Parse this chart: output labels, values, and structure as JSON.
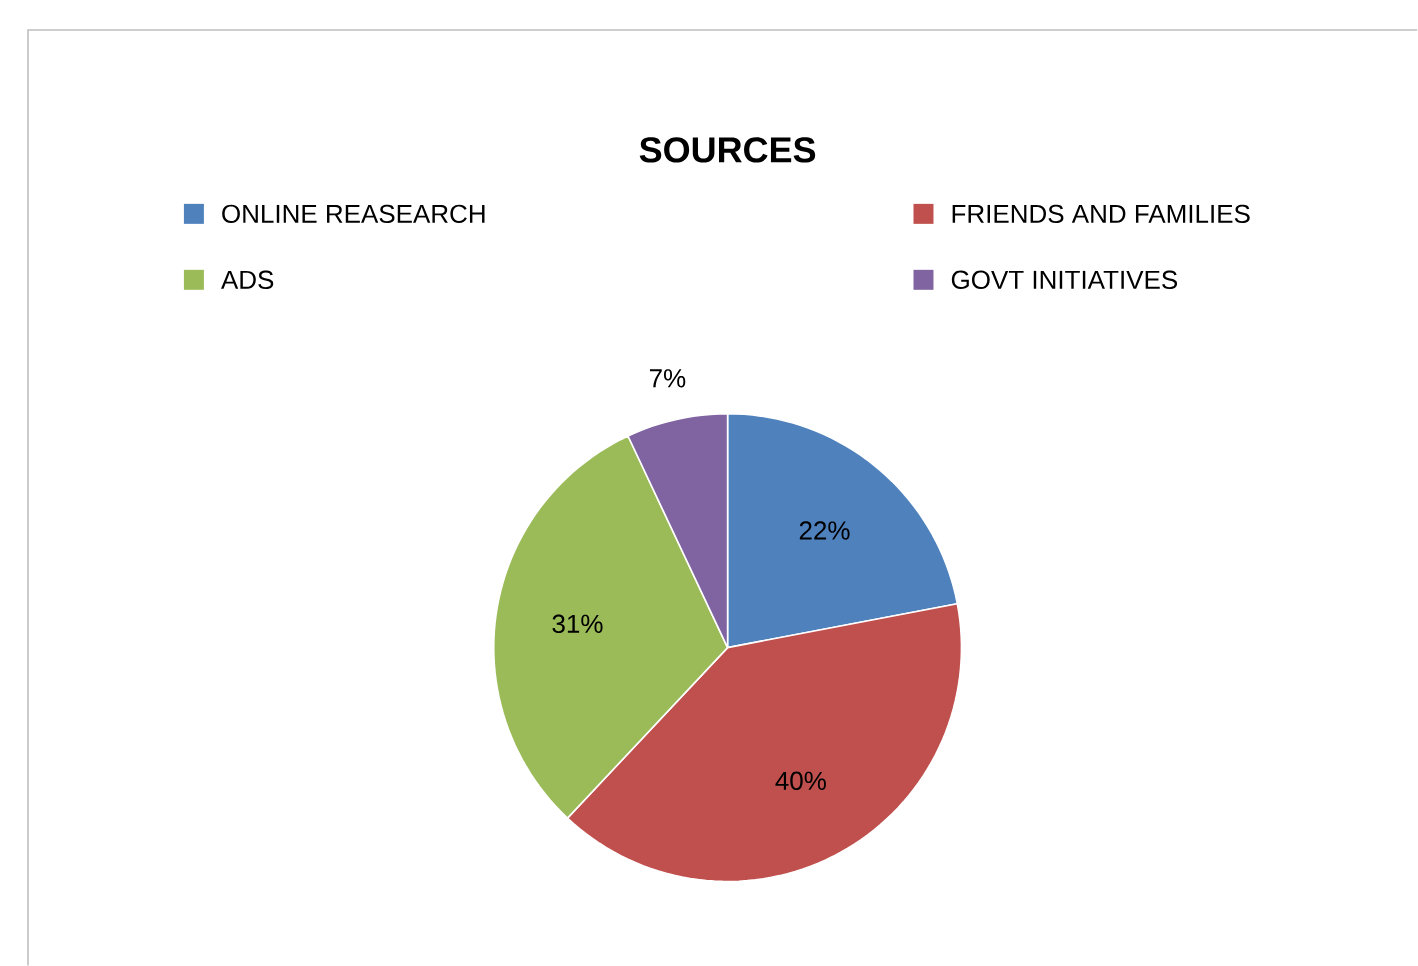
{
  "chart_data": {
    "type": "pie",
    "title": "SOURCES",
    "categories": [
      "ONLINE REASEARCH",
      "FRIENDS AND FAMILIES",
      "ADS",
      "GOVT INITIATIVES"
    ],
    "values": [
      22,
      40,
      31,
      7
    ],
    "colors": [
      "#4f81bd",
      "#c0504d",
      "#9bbb59",
      "#8064a2"
    ],
    "value_labels": [
      "22%",
      "40%",
      "31%",
      "7%"
    ],
    "legend": "top"
  }
}
